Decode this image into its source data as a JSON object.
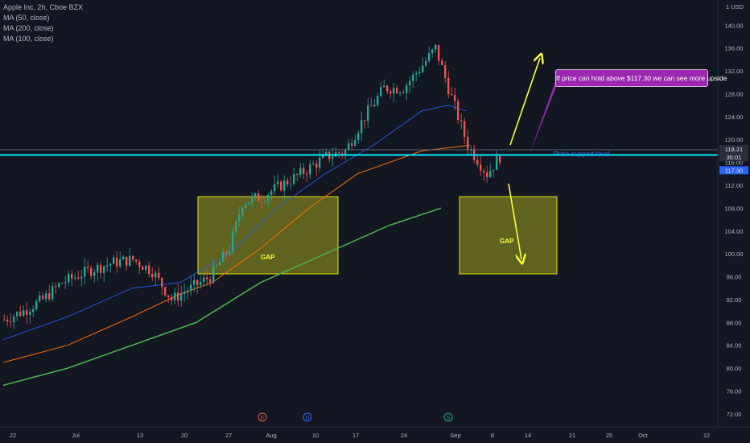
{
  "legend": {
    "symbol": "Apple Inc, 2h, Cboe BZX",
    "ma50": "MA (50, close)",
    "ma200": "MA (200, close)",
    "ma100": "MA (100, close)"
  },
  "colors": {
    "background": "#131722",
    "up": "#26a69a",
    "down": "#ef5350",
    "ma50": "#2962ff",
    "ma200": "#4caf50",
    "ma100": "#ff6d00",
    "support": "#00e5ff",
    "gap_fill": "#8b8b1f",
    "gap_stroke": "#e6e600",
    "arrow": "#ffff33",
    "callout": "#9c27b0"
  },
  "annotations": {
    "callout_text": "If price can hold above $117.30 we can see more upside",
    "support_label": "Price support level",
    "gap_left_label": "GAP",
    "gap_right_label": "GAP"
  },
  "price_badges": {
    "upper": "118.21",
    "middle": "35:01",
    "lower": "117.30"
  },
  "event_markers": [
    "E",
    "D",
    "S"
  ],
  "chart_data": {
    "type": "candlestick",
    "title": "Apple Inc, 2h, Cboe BZX",
    "y_unit": "USD",
    "y_ticks": [
      "140.00",
      "136.00",
      "132.00",
      "128.00",
      "124.00",
      "120.00",
      "116.00",
      "112.00",
      "108.00",
      "104.00",
      "100.00",
      "96.00",
      "92.00",
      "88.00",
      "84.00",
      "80.00",
      "76.00",
      "72.00"
    ],
    "x_ticks": [
      "22",
      "Jul",
      "13",
      "20",
      "27",
      "Aug",
      "10",
      "17",
      "24",
      "Sep",
      "8",
      "14",
      "21",
      "25",
      "Oct",
      "12"
    ],
    "ylim": [
      71,
      143
    ],
    "candle_anchors": [
      [
        0,
        88.5
      ],
      [
        6,
        90
      ],
      [
        12,
        92
      ],
      [
        18,
        95
      ],
      [
        26,
        97
      ],
      [
        34,
        98.5
      ],
      [
        40,
        99
      ],
      [
        46,
        97
      ],
      [
        52,
        92
      ],
      [
        58,
        94
      ],
      [
        64,
        96
      ],
      [
        70,
        101
      ],
      [
        74,
        109
      ],
      [
        80,
        110
      ],
      [
        86,
        112
      ],
      [
        92,
        114
      ],
      [
        100,
        117
      ],
      [
        106,
        118
      ],
      [
        112,
        124
      ],
      [
        118,
        129
      ],
      [
        124,
        129
      ],
      [
        130,
        133
      ],
      [
        134,
        136
      ],
      [
        138,
        129
      ],
      [
        144,
        119
      ],
      [
        150,
        114
      ],
      [
        154,
        117
      ]
    ],
    "series": [
      {
        "name": "MA (50, close)",
        "values": [
          [
            0,
            85
          ],
          [
            20,
            89
          ],
          [
            40,
            94
          ],
          [
            55,
            95
          ],
          [
            70,
            100
          ],
          [
            85,
            108
          ],
          [
            100,
            114
          ],
          [
            115,
            119
          ],
          [
            130,
            125
          ],
          [
            138,
            126
          ],
          [
            144,
            125
          ]
        ]
      },
      {
        "name": "MA (100, close)",
        "values": [
          [
            0,
            81
          ],
          [
            20,
            84
          ],
          [
            40,
            89
          ],
          [
            55,
            93
          ],
          [
            65,
            95
          ],
          [
            80,
            101
          ],
          [
            95,
            108
          ],
          [
            110,
            114
          ],
          [
            130,
            118
          ],
          [
            145,
            119
          ]
        ]
      },
      {
        "name": "MA (200, close)",
        "values": [
          [
            0,
            77
          ],
          [
            20,
            80
          ],
          [
            40,
            84
          ],
          [
            60,
            88
          ],
          [
            80,
            95
          ],
          [
            100,
            100
          ],
          [
            120,
            105
          ],
          [
            136,
            108
          ]
        ]
      }
    ],
    "support_level": 117.3,
    "reference_level": 118.21,
    "gap_zones": [
      [
        96.5,
        110
      ],
      [
        96.5,
        110
      ]
    ],
    "grid": false,
    "legend_position": "top-left"
  }
}
